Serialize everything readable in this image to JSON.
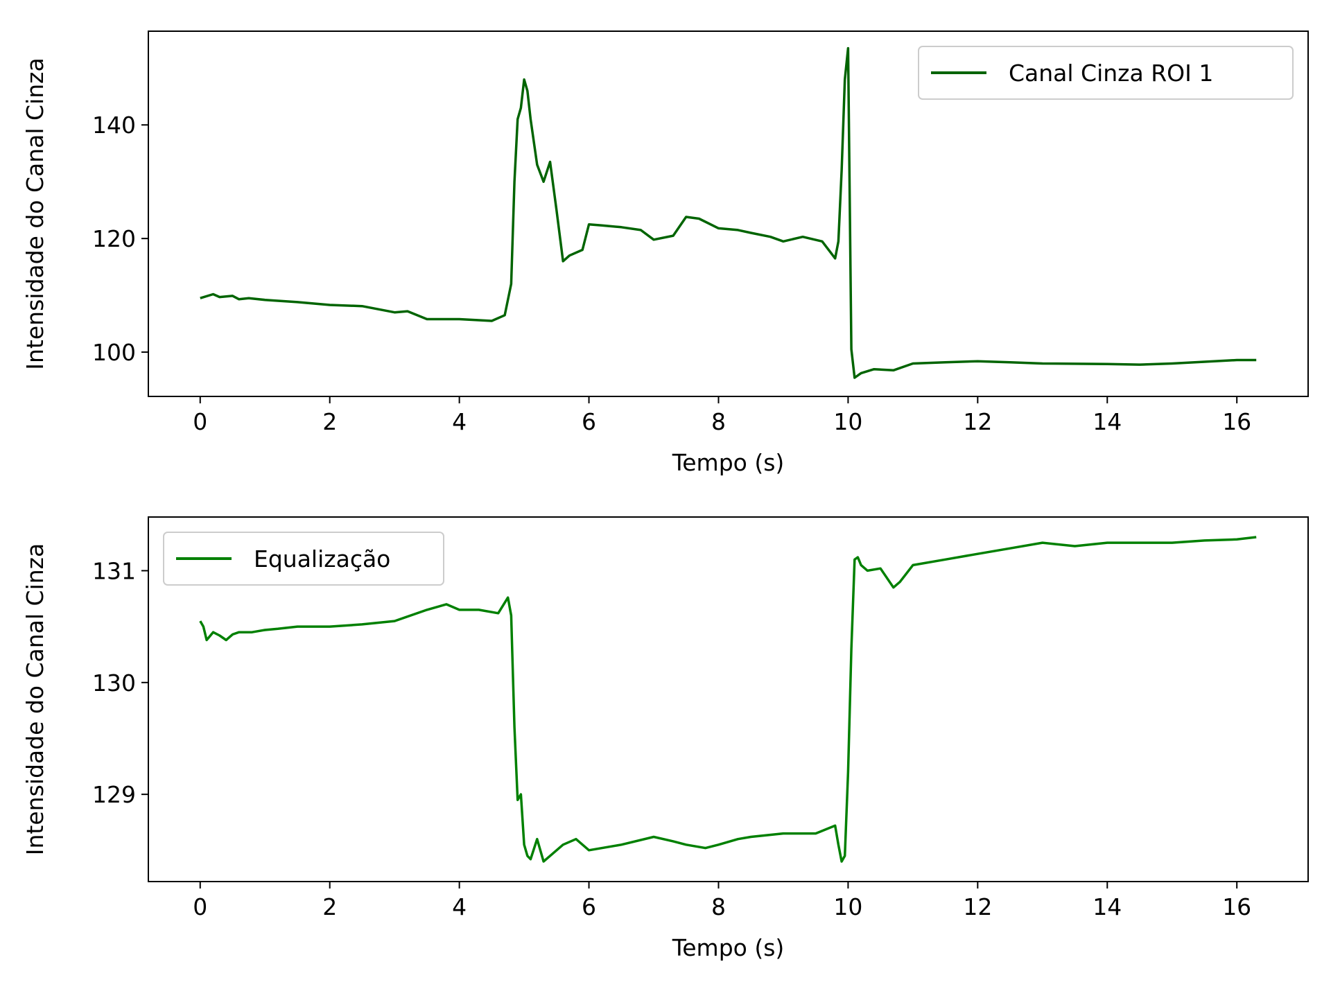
{
  "chart_data": [
    {
      "type": "line",
      "xlabel": "Tempo (s)",
      "ylabel": "Intensidade do Canal Cinza",
      "xlim": [
        -0.8,
        17.1
      ],
      "ylim": [
        92.2,
        156.5
      ],
      "xticks": [
        0,
        2,
        4,
        6,
        8,
        10,
        12,
        14,
        16
      ],
      "yticks": [
        100,
        120,
        140
      ],
      "grid": false,
      "legend_position": "top-right",
      "series": [
        {
          "name": "Canal Cinza ROI 1",
          "color": "#006400",
          "x": [
            0,
            0.2,
            0.3,
            0.5,
            0.6,
            0.75,
            1.0,
            1.5,
            2.0,
            2.5,
            3.0,
            3.2,
            3.5,
            4.0,
            4.5,
            4.7,
            4.8,
            4.85,
            4.9,
            4.95,
            5.0,
            5.05,
            5.1,
            5.2,
            5.3,
            5.4,
            5.5,
            5.6,
            5.7,
            5.9,
            6.0,
            6.2,
            6.5,
            6.8,
            7.0,
            7.3,
            7.5,
            7.7,
            8.0,
            8.3,
            8.5,
            8.8,
            9.0,
            9.3,
            9.6,
            9.8,
            9.85,
            9.9,
            9.95,
            10.0,
            10.05,
            10.1,
            10.2,
            10.4,
            10.7,
            11.0,
            11.5,
            12.0,
            12.5,
            13.0,
            14.0,
            14.5,
            15.0,
            15.5,
            16.0,
            16.3
          ],
          "y": [
            109.5,
            110.2,
            109.7,
            109.9,
            109.3,
            109.5,
            109.2,
            108.8,
            108.3,
            108.1,
            107.0,
            107.2,
            105.8,
            105.8,
            105.5,
            106.5,
            112,
            130,
            141,
            143,
            148,
            146,
            141,
            133,
            130,
            133.5,
            125,
            116,
            117,
            118,
            122.5,
            122.3,
            122.0,
            121.5,
            119.8,
            120.5,
            123.8,
            123.5,
            121.8,
            121.5,
            121.0,
            120.3,
            119.5,
            120.3,
            119.5,
            116.5,
            119.5,
            132,
            148,
            153.5,
            100.5,
            95.5,
            96.3,
            97,
            96.8,
            98.0,
            98.2,
            98.4,
            98.2,
            98.0,
            97.9,
            97.8,
            98.0,
            98.3,
            98.6,
            98.6
          ]
        }
      ]
    },
    {
      "type": "line",
      "xlabel": "Tempo (s)",
      "ylabel": "Intensidade do Canal Cinza",
      "xlim": [
        -0.8,
        17.1
      ],
      "ylim": [
        128.22,
        131.48
      ],
      "xticks": [
        0,
        2,
        4,
        6,
        8,
        10,
        12,
        14,
        16
      ],
      "yticks": [
        129,
        130,
        131
      ],
      "grid": false,
      "legend_position": "top-left",
      "series": [
        {
          "name": "Equalização",
          "color": "#008000",
          "x": [
            0,
            0.05,
            0.1,
            0.2,
            0.3,
            0.4,
            0.5,
            0.6,
            0.8,
            1.0,
            1.2,
            1.5,
            2.0,
            2.5,
            3.0,
            3.5,
            3.8,
            4.0,
            4.3,
            4.6,
            4.75,
            4.8,
            4.85,
            4.9,
            4.95,
            5.0,
            5.05,
            5.1,
            5.2,
            5.3,
            5.4,
            5.6,
            5.8,
            6.0,
            6.5,
            7.0,
            7.3,
            7.5,
            7.8,
            8.0,
            8.3,
            8.5,
            9.0,
            9.5,
            9.8,
            9.85,
            9.9,
            9.95,
            10.0,
            10.05,
            10.1,
            10.15,
            10.2,
            10.3,
            10.5,
            10.7,
            10.8,
            11.0,
            11.5,
            12.0,
            12.5,
            13.0,
            13.5,
            14.0,
            14.5,
            15.0,
            15.5,
            16.0,
            16.3
          ],
          "y": [
            130.55,
            130.5,
            130.38,
            130.45,
            130.42,
            130.38,
            130.43,
            130.45,
            130.45,
            130.47,
            130.48,
            130.5,
            130.5,
            130.52,
            130.55,
            130.65,
            130.7,
            130.65,
            130.65,
            130.62,
            130.76,
            130.6,
            129.6,
            128.95,
            129.0,
            128.55,
            128.45,
            128.42,
            128.6,
            128.4,
            128.45,
            128.55,
            128.6,
            128.5,
            128.55,
            128.62,
            128.58,
            128.55,
            128.52,
            128.55,
            128.6,
            128.62,
            128.65,
            128.65,
            128.72,
            128.55,
            128.4,
            128.45,
            129.2,
            130.3,
            131.1,
            131.12,
            131.05,
            131.0,
            131.02,
            130.85,
            130.9,
            131.05,
            131.1,
            131.15,
            131.2,
            131.25,
            131.22,
            131.25,
            131.25,
            131.25,
            131.27,
            131.28,
            131.3
          ]
        }
      ]
    }
  ]
}
